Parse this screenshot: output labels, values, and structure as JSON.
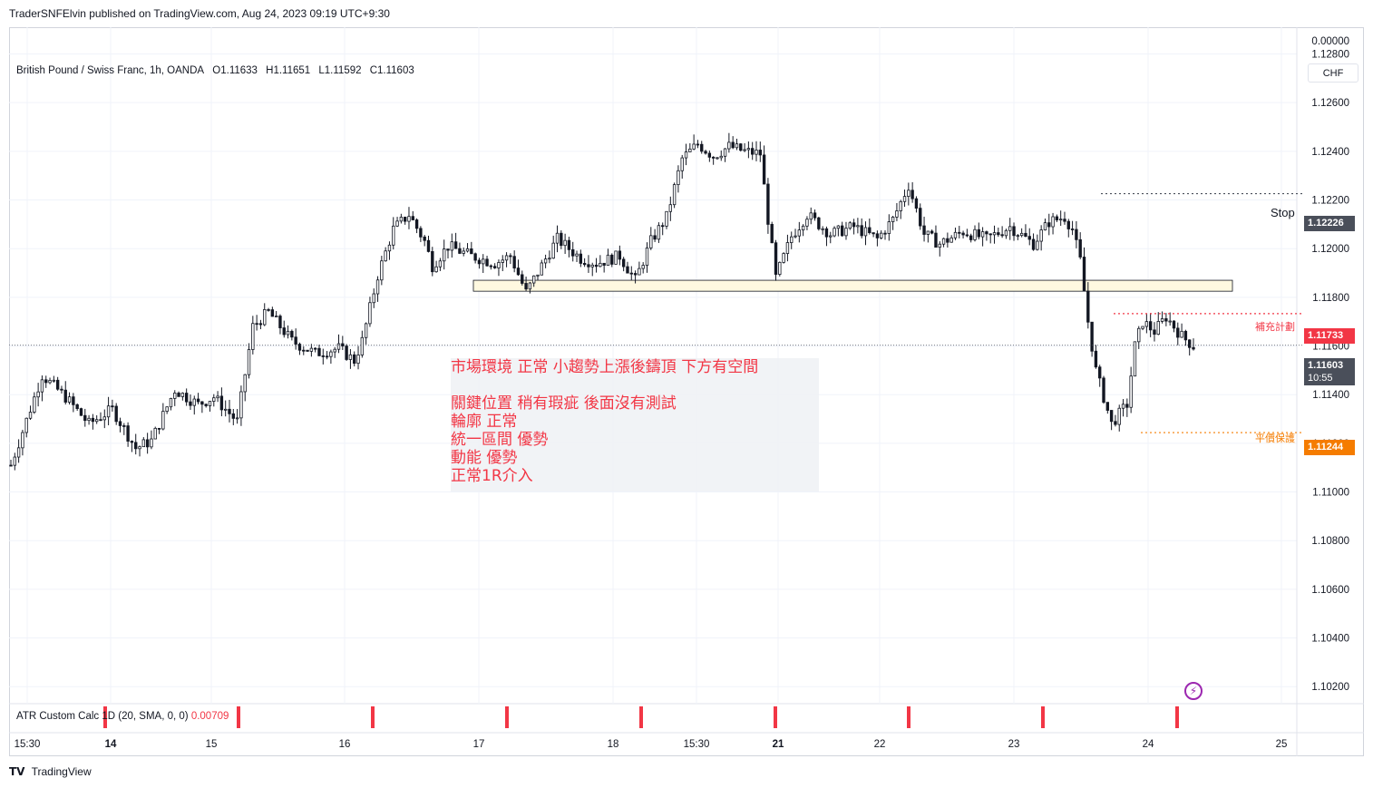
{
  "header": {
    "published": "TraderSNFElvin published on TradingView.com, Aug 24, 2023 09:19 UTC+9:30"
  },
  "legend": {
    "symbol": "British Pound / Swiss Franc, 1h, OANDA",
    "open": "O1.11633",
    "high": "H1.11651",
    "low": "L1.11592",
    "close": "C1.11603"
  },
  "currency_button": "CHF",
  "note_lines": [
    "市場環境 正常 小趨勢上漲後鑄頂 下方有空間",
    "",
    "關鍵位置 稍有瑕疵 後面沒有測試",
    "輪廓 正常",
    "統一區間 優勢",
    "動能  優勢",
    "正常1R介入"
  ],
  "annotations": {
    "stop": "Stop",
    "add_plan": "補充計劃",
    "breakeven": "平價保護"
  },
  "price_labels": {
    "stop": "1.12226",
    "add_plan": "1.11733",
    "last": "1.11603",
    "countdown": "10:55",
    "breakeven": "1.11244"
  },
  "indicator": {
    "name": "ATR Custom Calc",
    "params": "1D (20, SMA, 0, 0)",
    "value": "0.00709",
    "axis_top": "0.00000",
    "axis_bottom": "0.00000"
  },
  "footer": {
    "brand": "TradingView"
  },
  "colors": {
    "candle": "#131722",
    "red": "#f23645",
    "orange": "#f57c00",
    "zone_fill": "#fff9e0",
    "last_price": "#4a4f5a"
  },
  "chart_data": {
    "type": "candlestick",
    "symbol": "GBPCHF",
    "timeframe": "1h",
    "y_ticks": [
      1.128,
      1.126,
      1.124,
      1.122,
      1.12,
      1.118,
      1.116,
      1.114,
      1.112,
      1.11,
      1.108,
      1.106,
      1.104,
      1.102
    ],
    "ylim": [
      1.1013,
      1.1291
    ],
    "x_ticks": [
      "15:30",
      "14",
      "15",
      "16",
      "17",
      "18",
      "15:30",
      "21",
      "22",
      "23",
      "24",
      "25"
    ],
    "x_tick_bold": [
      false,
      true,
      false,
      false,
      false,
      false,
      false,
      true,
      false,
      false,
      false,
      false
    ],
    "horizontal_lines": [
      {
        "name": "stop",
        "price": 1.12226
      },
      {
        "name": "add-plan",
        "price": 1.11733
      },
      {
        "name": "breakeven",
        "price": 1.11244
      },
      {
        "name": "last-price",
        "price": 1.11603
      }
    ],
    "zone": {
      "top": 1.1187,
      "bottom": 1.11825
    },
    "price_path": [
      [
        0,
        1.1111
      ],
      [
        8,
        1.1148
      ],
      [
        14,
        1.1139
      ],
      [
        20,
        1.1128
      ],
      [
        26,
        1.1134
      ],
      [
        32,
        1.1118
      ],
      [
        36,
        1.1121
      ],
      [
        42,
        1.1142
      ],
      [
        48,
        1.1136
      ],
      [
        52,
        1.1139
      ],
      [
        58,
        1.1129
      ],
      [
        62,
        1.1168
      ],
      [
        66,
        1.1174
      ],
      [
        72,
        1.1162
      ],
      [
        78,
        1.1157
      ],
      [
        84,
        1.1159
      ],
      [
        88,
        1.1154
      ],
      [
        90,
        1.1162
      ],
      [
        94,
        1.1189
      ],
      [
        98,
        1.1208
      ],
      [
        102,
        1.1214
      ],
      [
        106,
        1.1203
      ],
      [
        108,
        1.1193
      ],
      [
        112,
        1.1201
      ],
      [
        118,
        1.1197
      ],
      [
        124,
        1.1194
      ],
      [
        128,
        1.1197
      ],
      [
        132,
        1.1182
      ],
      [
        136,
        1.1193
      ],
      [
        140,
        1.1204
      ],
      [
        146,
        1.1196
      ],
      [
        150,
        1.1194
      ],
      [
        156,
        1.1197
      ],
      [
        160,
        1.1187
      ],
      [
        164,
        1.1203
      ],
      [
        168,
        1.1213
      ],
      [
        172,
        1.1237
      ],
      [
        176,
        1.1243
      ],
      [
        180,
        1.1238
      ],
      [
        184,
        1.1242
      ],
      [
        188,
        1.124
      ],
      [
        192,
        1.1239
      ],
      [
        194,
        1.1212
      ],
      [
        196,
        1.1188
      ],
      [
        200,
        1.1205
      ],
      [
        204,
        1.1214
      ],
      [
        210,
        1.1206
      ],
      [
        216,
        1.1209
      ],
      [
        222,
        1.1204
      ],
      [
        226,
        1.1212
      ],
      [
        230,
        1.1226
      ],
      [
        234,
        1.1206
      ],
      [
        238,
        1.1202
      ],
      [
        244,
        1.1207
      ],
      [
        250,
        1.1204
      ],
      [
        256,
        1.1209
      ],
      [
        262,
        1.1202
      ],
      [
        266,
        1.1211
      ],
      [
        270,
        1.1213
      ],
      [
        272,
        1.1208
      ],
      [
        274,
        1.1195
      ],
      [
        276,
        1.117
      ],
      [
        278,
        1.115
      ],
      [
        282,
        1.1128
      ],
      [
        286,
        1.1136
      ],
      [
        288,
        1.116
      ],
      [
        290,
        1.117
      ],
      [
        293,
        1.1166
      ],
      [
        296,
        1.1172
      ],
      [
        300,
        1.1164
      ],
      [
        303,
        1.116
      ]
    ]
  }
}
